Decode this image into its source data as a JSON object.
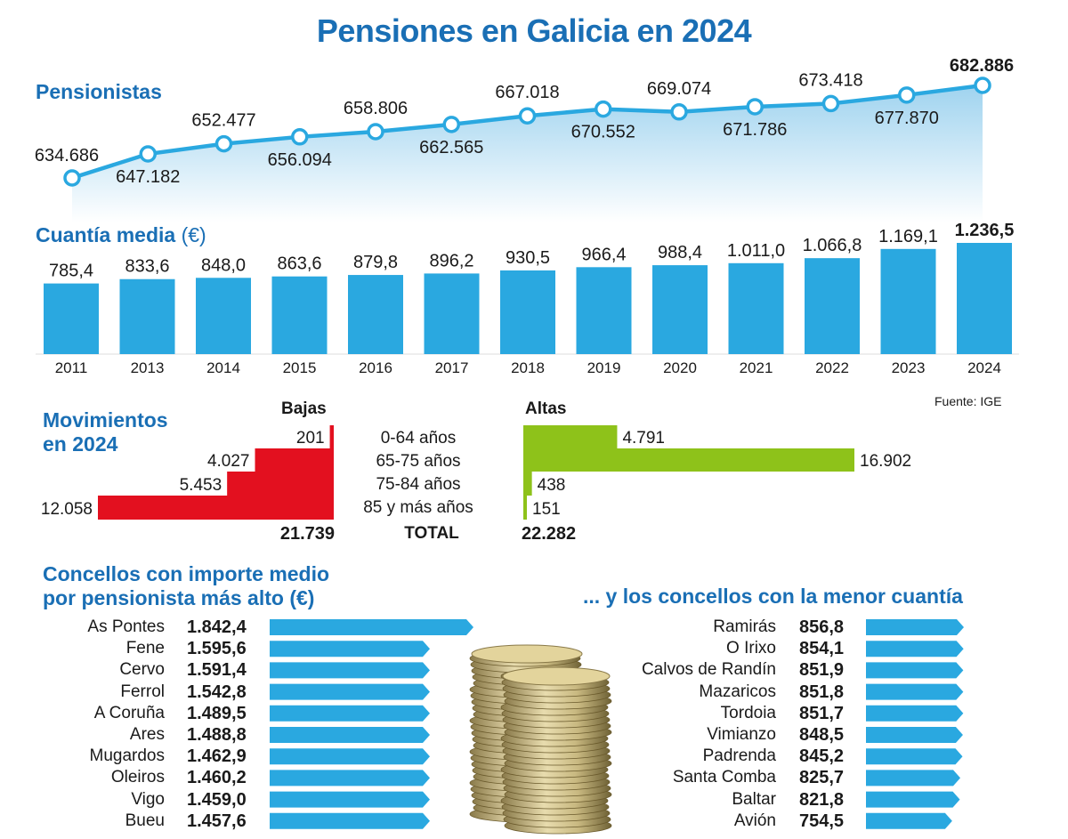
{
  "title": "Pensiones en Galicia en 2024",
  "fuente": "Fuente: IGE",
  "colors": {
    "accent": "#1a6fb5",
    "bar": "#2aa8e0",
    "bajas": "#e3101f",
    "altas": "#8ec21a"
  },
  "chart_data": [
    {
      "type": "line",
      "title": "Pensionistas",
      "x": [
        "2011",
        "2013",
        "2014",
        "2015",
        "2016",
        "2017",
        "2018",
        "2019",
        "2020",
        "2021",
        "2022",
        "2023",
        "2024"
      ],
      "values": [
        634686,
        647182,
        652477,
        656094,
        658806,
        662565,
        667018,
        670552,
        669074,
        671786,
        673418,
        677870,
        682886
      ],
      "labels": [
        "634.686",
        "647.182",
        "652.477",
        "656.094",
        "658.806",
        "662.565",
        "667.018",
        "670.552",
        "669.074",
        "671.786",
        "673.418",
        "677.870",
        "682.886"
      ]
    },
    {
      "type": "bar",
      "title": "Cuantía media",
      "unit": "(€)",
      "categories": [
        "2011",
        "2013",
        "2014",
        "2015",
        "2016",
        "2017",
        "2018",
        "2019",
        "2020",
        "2021",
        "2022",
        "2023",
        "2024"
      ],
      "values": [
        785.4,
        833.6,
        848.0,
        863.6,
        879.8,
        896.2,
        930.5,
        966.4,
        988.4,
        1011.0,
        1066.8,
        1169.1,
        1236.5
      ],
      "labels": [
        "785,4",
        "833,6",
        "848,0",
        "863,6",
        "879,8",
        "896,2",
        "930,5",
        "966,4",
        "988,4",
        "1.011,0",
        "1.066,8",
        "1.169,1",
        "1.236,5"
      ]
    },
    {
      "type": "bar",
      "title_line1": "Movimientos",
      "title_line2": "en 2024",
      "bajas_label": "Bajas",
      "altas_label": "Altas",
      "categories": [
        "0-64 años",
        "65-75 años",
        "75-84 años",
        "85 y más años"
      ],
      "total_label": "TOTAL",
      "series": [
        {
          "name": "Bajas",
          "values": [
            201,
            4027,
            5453,
            12058
          ],
          "labels": [
            "201",
            "4.027",
            "5.453",
            "12.058"
          ],
          "total": 21739,
          "total_text": "21.739"
        },
        {
          "name": "Altas",
          "values": [
            4791,
            16902,
            438,
            151
          ],
          "labels": [
            "4.791",
            "16.902",
            "438",
            "151"
          ],
          "total": 22282,
          "total_text": "22.282"
        }
      ]
    },
    {
      "type": "bar",
      "title_line1": "Concellos con importe medio",
      "title_line2": "por pensionista más alto (€)",
      "categories": [
        "As Pontes",
        "Fene",
        "Cervo",
        "Ferrol",
        "A Coruña",
        "Ares",
        "Mugardos",
        "Oleiros",
        "Vigo",
        "Bueu"
      ],
      "values": [
        1842.4,
        1595.6,
        1591.4,
        1542.8,
        1489.5,
        1488.8,
        1462.9,
        1460.2,
        1459.0,
        1457.6
      ],
      "labels": [
        "1.842,4",
        "1.595,6",
        "1.591,4",
        "1.542,8",
        "1.489,5",
        "1.488,8",
        "1.462,9",
        "1.460,2",
        "1.459,0",
        "1.457,6"
      ]
    },
    {
      "type": "bar",
      "title": "... y los concellos con la menor cuantía",
      "categories": [
        "Ramirás",
        "O Irixo",
        "Calvos de Randín",
        "Mazaricos",
        "Tordoia",
        "Vimianzo",
        "Padrenda",
        "Santa Comba",
        "Baltar",
        "Avión"
      ],
      "values": [
        856.8,
        854.1,
        851.9,
        851.8,
        851.7,
        848.5,
        845.2,
        825.7,
        821.8,
        754.5
      ],
      "labels": [
        "856,8",
        "854,1",
        "851,9",
        "851,8",
        "851,7",
        "848,5",
        "845,2",
        "825,7",
        "821,8",
        "754,5"
      ]
    }
  ]
}
